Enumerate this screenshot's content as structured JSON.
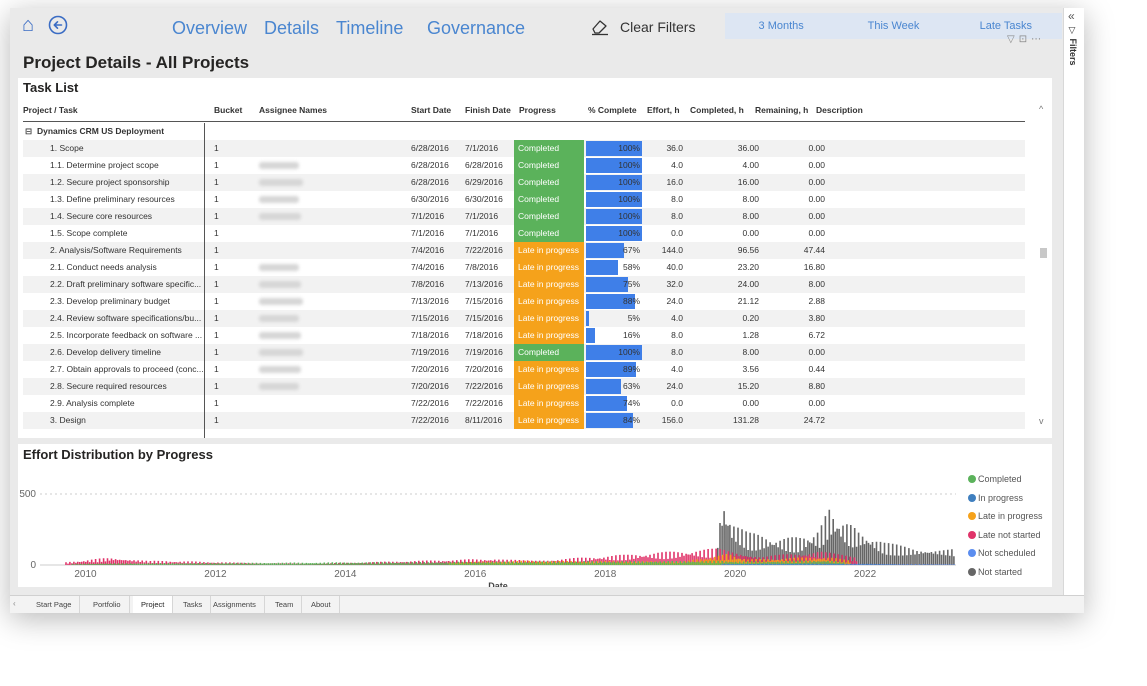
{
  "nav": {
    "home_icon": "home-icon",
    "back_icon": "back-arrow-circle-icon",
    "links": [
      "Overview",
      "Details",
      "Timeline",
      "Governance"
    ],
    "clear_filters_label": "Clear Filters",
    "clear_filters_icon": "eraser-icon",
    "range_tabs": [
      "3 Months",
      "This Week",
      "Late Tasks"
    ]
  },
  "page_title": "Project Details - All Projects",
  "filters_pane": {
    "label": "Filters",
    "collapse_icon": "double-chevron-left-icon",
    "filter_icon": "filter-icon"
  },
  "task_list": {
    "title": "Task List",
    "columns": [
      "Project / Task",
      "Bucket",
      "Assignee Names",
      "Start Date",
      "Finish Date",
      "Progress",
      "% Complete",
      "Effort, h",
      "Completed, h",
      "Remaining, h",
      "Description"
    ],
    "group": {
      "expand_icon": "collapse-minus-icon",
      "name": "Dynamics CRM US Deployment"
    },
    "rows": [
      {
        "task": "1. Scope",
        "bucket": "1",
        "assignee": false,
        "start": "6/28/2016",
        "finish": "7/1/2016",
        "progress": "Completed",
        "pct": 100,
        "pct_label": "100%",
        "effort": "36.0",
        "completed": "36.00",
        "remaining": "0.00"
      },
      {
        "task": "1.1. Determine project scope",
        "bucket": "1",
        "assignee": true,
        "start": "6/28/2016",
        "finish": "6/28/2016",
        "progress": "Completed",
        "pct": 100,
        "pct_label": "100%",
        "effort": "4.0",
        "completed": "4.00",
        "remaining": "0.00"
      },
      {
        "task": "1.2. Secure project sponsorship",
        "bucket": "1",
        "assignee": true,
        "start": "6/28/2016",
        "finish": "6/29/2016",
        "progress": "Completed",
        "pct": 100,
        "pct_label": "100%",
        "effort": "16.0",
        "completed": "16.00",
        "remaining": "0.00"
      },
      {
        "task": "1.3. Define preliminary resources",
        "bucket": "1",
        "assignee": true,
        "start": "6/30/2016",
        "finish": "6/30/2016",
        "progress": "Completed",
        "pct": 100,
        "pct_label": "100%",
        "effort": "8.0",
        "completed": "8.00",
        "remaining": "0.00"
      },
      {
        "task": "1.4. Secure core resources",
        "bucket": "1",
        "assignee": true,
        "start": "7/1/2016",
        "finish": "7/1/2016",
        "progress": "Completed",
        "pct": 100,
        "pct_label": "100%",
        "effort": "8.0",
        "completed": "8.00",
        "remaining": "0.00"
      },
      {
        "task": "1.5. Scope complete",
        "bucket": "1",
        "assignee": false,
        "start": "7/1/2016",
        "finish": "7/1/2016",
        "progress": "Completed",
        "pct": 100,
        "pct_label": "100%",
        "effort": "0.0",
        "completed": "0.00",
        "remaining": "0.00"
      },
      {
        "task": "2. Analysis/Software Requirements",
        "bucket": "1",
        "assignee": false,
        "start": "7/4/2016",
        "finish": "7/22/2016",
        "progress": "Late in progress",
        "pct": 67,
        "pct_label": "67%",
        "effort": "144.0",
        "completed": "96.56",
        "remaining": "47.44"
      },
      {
        "task": "2.1. Conduct needs analysis",
        "bucket": "1",
        "assignee": true,
        "start": "7/4/2016",
        "finish": "7/8/2016",
        "progress": "Late in progress",
        "pct": 58,
        "pct_label": "58%",
        "effort": "40.0",
        "completed": "23.20",
        "remaining": "16.80"
      },
      {
        "task": "2.2. Draft preliminary software specific...",
        "bucket": "1",
        "assignee": true,
        "start": "7/8/2016",
        "finish": "7/13/2016",
        "progress": "Late in progress",
        "pct": 75,
        "pct_label": "75%",
        "effort": "32.0",
        "completed": "24.00",
        "remaining": "8.00"
      },
      {
        "task": "2.3. Develop preliminary budget",
        "bucket": "1",
        "assignee": true,
        "start": "7/13/2016",
        "finish": "7/15/2016",
        "progress": "Late in progress",
        "pct": 88,
        "pct_label": "88%",
        "effort": "24.0",
        "completed": "21.12",
        "remaining": "2.88"
      },
      {
        "task": "2.4. Review software specifications/bu...",
        "bucket": "1",
        "assignee": true,
        "start": "7/15/2016",
        "finish": "7/15/2016",
        "progress": "Late in progress",
        "pct": 5,
        "pct_label": "5%",
        "effort": "4.0",
        "completed": "0.20",
        "remaining": "3.80"
      },
      {
        "task": "2.5. Incorporate feedback on software ...",
        "bucket": "1",
        "assignee": true,
        "start": "7/18/2016",
        "finish": "7/18/2016",
        "progress": "Late in progress",
        "pct": 16,
        "pct_label": "16%",
        "effort": "8.0",
        "completed": "1.28",
        "remaining": "6.72"
      },
      {
        "task": "2.6. Develop delivery timeline",
        "bucket": "1",
        "assignee": true,
        "start": "7/19/2016",
        "finish": "7/19/2016",
        "progress": "Completed",
        "pct": 100,
        "pct_label": "100%",
        "effort": "8.0",
        "completed": "8.00",
        "remaining": "0.00"
      },
      {
        "task": "2.7. Obtain approvals to proceed (conc...",
        "bucket": "1",
        "assignee": true,
        "start": "7/20/2016",
        "finish": "7/20/2016",
        "progress": "Late in progress",
        "pct": 89,
        "pct_label": "89%",
        "effort": "4.0",
        "completed": "3.56",
        "remaining": "0.44"
      },
      {
        "task": "2.8. Secure required resources",
        "bucket": "1",
        "assignee": true,
        "start": "7/20/2016",
        "finish": "7/22/2016",
        "progress": "Late in progress",
        "pct": 63,
        "pct_label": "63%",
        "effort": "24.0",
        "completed": "15.20",
        "remaining": "8.80"
      },
      {
        "task": "2.9. Analysis complete",
        "bucket": "1",
        "assignee": false,
        "start": "7/22/2016",
        "finish": "7/22/2016",
        "progress": "Late in progress",
        "pct": 74,
        "pct_label": "74%",
        "effort": "0.0",
        "completed": "0.00",
        "remaining": "0.00"
      },
      {
        "task": "3. Design",
        "bucket": "1",
        "assignee": false,
        "start": "7/22/2016",
        "finish": "8/11/2016",
        "progress": "Late in progress",
        "pct": 84,
        "pct_label": "84%",
        "effort": "156.0",
        "completed": "131.28",
        "remaining": "24.72"
      }
    ]
  },
  "colors": {
    "completed": "#5bb25b",
    "late_in_progress": "#f5a21b",
    "bar": "#3f7fe8",
    "accent": "#4a86d0"
  },
  "chart_data": {
    "type": "area",
    "title": "Effort Distribution by Progress",
    "xlabel": "Date",
    "ylabel": "",
    "x_ticks": [
      "2010",
      "2012",
      "2014",
      "2016",
      "2018",
      "2020",
      "2022"
    ],
    "xlim": [
      2009.3,
      2023.4
    ],
    "y_ticks": [
      "0",
      "500"
    ],
    "ylim": [
      0,
      500
    ],
    "grid": true,
    "legend_position": "right",
    "series": [
      {
        "name": "Completed",
        "color": "#5bb25b",
        "points": [
          [
            2009.8,
            8
          ],
          [
            2010.2,
            12
          ],
          [
            2019.8,
            30
          ],
          [
            2020.1,
            25
          ],
          [
            2021.4,
            35
          ],
          [
            2021.7,
            20
          ]
        ]
      },
      {
        "name": "In progress",
        "color": "#3f7fbf",
        "points": [
          [
            2019.8,
            10
          ],
          [
            2020.3,
            8
          ],
          [
            2021.5,
            12
          ],
          [
            2022.5,
            6
          ]
        ]
      },
      {
        "name": "Late in progress",
        "color": "#f5a21b",
        "points": [
          [
            2015.6,
            20
          ],
          [
            2016.8,
            30
          ],
          [
            2019.2,
            25
          ],
          [
            2019.9,
            80
          ],
          [
            2020.2,
            40
          ],
          [
            2021.4,
            60
          ],
          [
            2021.8,
            30
          ]
        ]
      },
      {
        "name": "Late not started",
        "color": "#e0346a",
        "points": [
          [
            2009.7,
            20
          ],
          [
            2010.4,
            55
          ],
          [
            2011.0,
            30
          ],
          [
            2011.7,
            25
          ],
          [
            2012.5,
            15
          ],
          [
            2013.5,
            10
          ],
          [
            2016.3,
            45
          ],
          [
            2016.9,
            30
          ],
          [
            2019.8,
            120
          ],
          [
            2020.4,
            60
          ],
          [
            2021.3,
            100
          ],
          [
            2021.9,
            50
          ]
        ]
      },
      {
        "name": "Not scheduled",
        "color": "#5b8def",
        "points": [
          [
            2019.8,
            5
          ],
          [
            2022.0,
            5
          ],
          [
            2023.4,
            5
          ]
        ]
      },
      {
        "name": "Not started",
        "color": "#666666",
        "points": [
          [
            2019.7,
            50
          ],
          [
            2019.8,
            490
          ],
          [
            2019.95,
            320
          ],
          [
            2020.2,
            230
          ],
          [
            2020.6,
            200
          ],
          [
            2021.0,
            195
          ],
          [
            2021.3,
            250
          ],
          [
            2021.45,
            410
          ],
          [
            2021.6,
            330
          ],
          [
            2021.9,
            250
          ],
          [
            2022.3,
            160
          ],
          [
            2022.8,
            120
          ],
          [
            2023.4,
            120
          ]
        ]
      }
    ]
  },
  "page_tabs": {
    "arrow_icon": "chevron-left-icon",
    "tabs": [
      "Start Page",
      "Portfolio",
      "Project",
      "Tasks",
      "Assignments",
      "Team",
      "About"
    ],
    "active": "Project"
  }
}
